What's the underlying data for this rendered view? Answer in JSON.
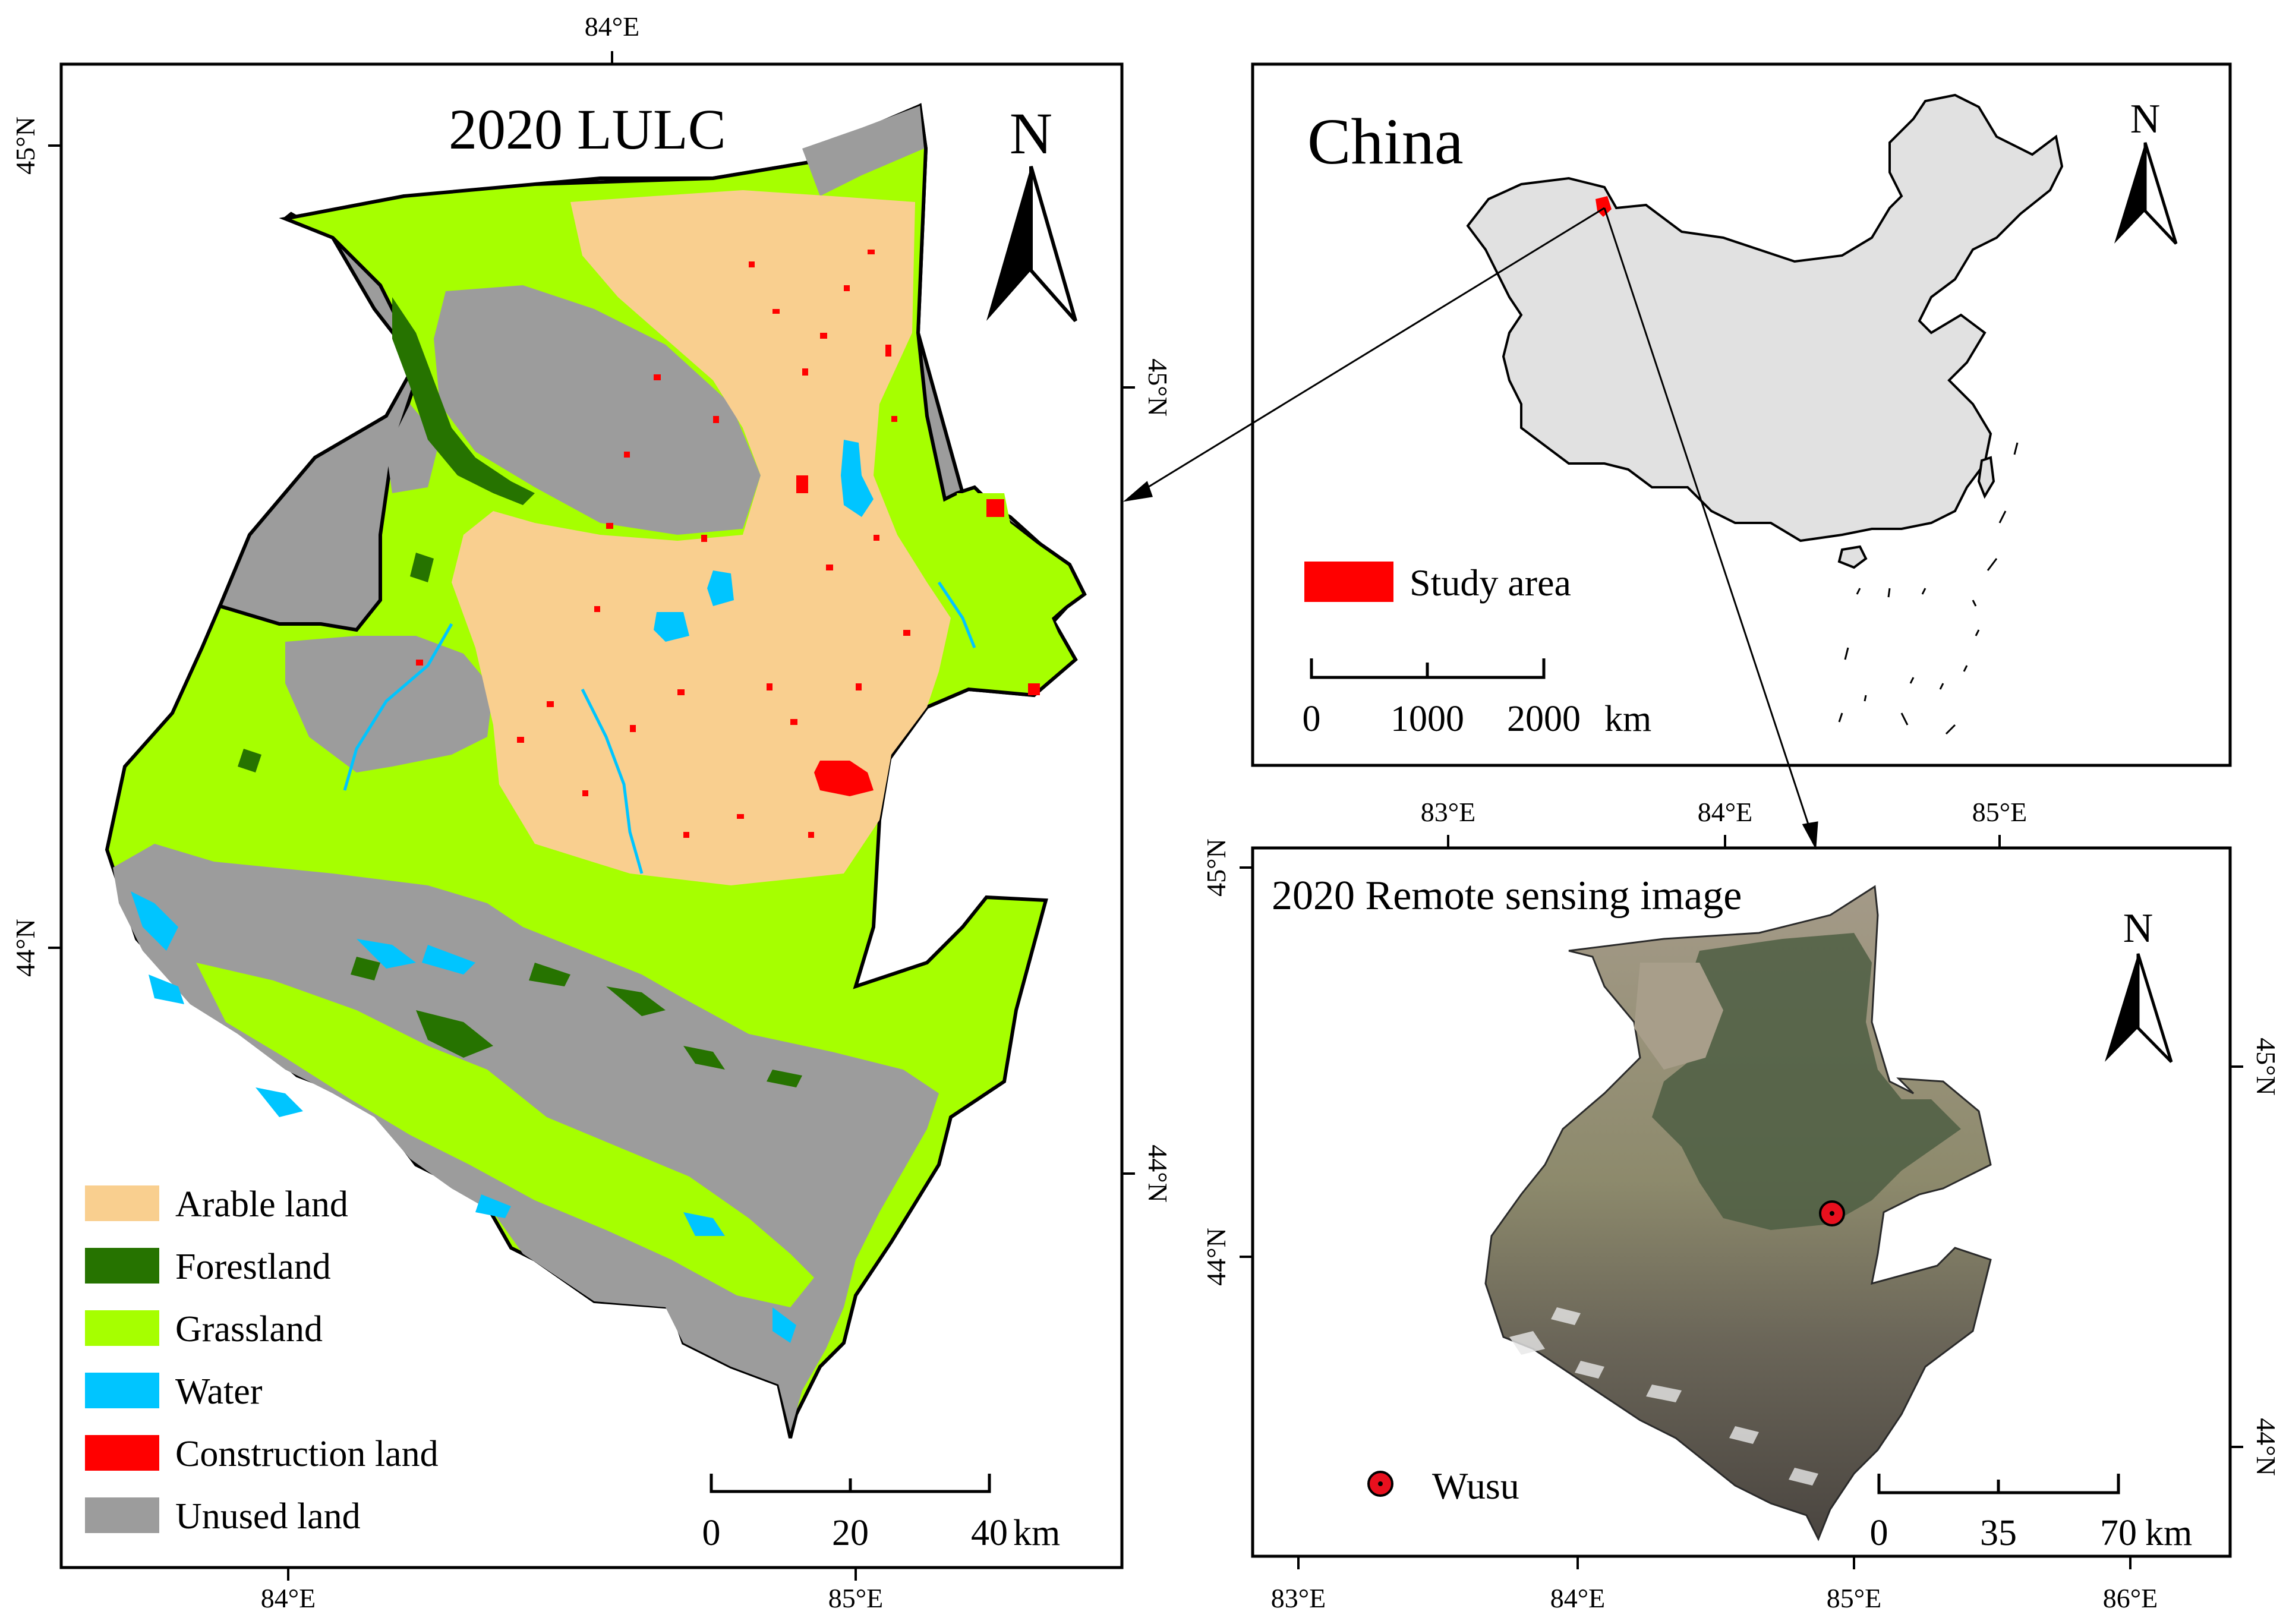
{
  "lulc_map": {
    "title": "2020 LULC",
    "north_label": "N",
    "top_lon_label": "84°E",
    "bottom_lon_labels": [
      "84°E",
      "85°E"
    ],
    "left_lat_labels": [
      "45°N",
      "44°N"
    ],
    "right_lat_labels": [
      "45°N",
      "44°N"
    ],
    "legend": [
      {
        "label": "Arable land",
        "color": "#F9CF8F"
      },
      {
        "label": "Forestland",
        "color": "#267300"
      },
      {
        "label": "Grassland",
        "color": "#A6FF00"
      },
      {
        "label": "Water",
        "color": "#00C5FF"
      },
      {
        "label": "Construction land",
        "color": "#FF0000"
      },
      {
        "label": "Unused land",
        "color": "#9C9C9C"
      }
    ],
    "scale_labels": [
      "0",
      "20",
      "40"
    ],
    "scale_unit": "km"
  },
  "china_map": {
    "title": "China",
    "north_label": "N",
    "legend_label": "Study area",
    "legend_color": "#FF0000",
    "scale_labels": [
      "0",
      "1000",
      "2000"
    ],
    "scale_unit": "km"
  },
  "rs_map": {
    "title": "2020 Remote sensing image",
    "north_label": "N",
    "top_lon_labels": [
      "83°E",
      "84°E",
      "85°E"
    ],
    "bottom_lon_labels": [
      "83°E",
      "84°E",
      "85°E",
      "86°E"
    ],
    "left_lat_labels": [
      "45°N",
      "44°N"
    ],
    "right_lat_labels": [
      "45°N",
      "44°N"
    ],
    "city_label": "Wusu",
    "scale_labels": [
      "0",
      "35",
      "70"
    ],
    "scale_unit": "km"
  },
  "colors": {
    "frame": "#000000",
    "china_fill": "#E1E1E1",
    "marker": "#E8101E"
  }
}
